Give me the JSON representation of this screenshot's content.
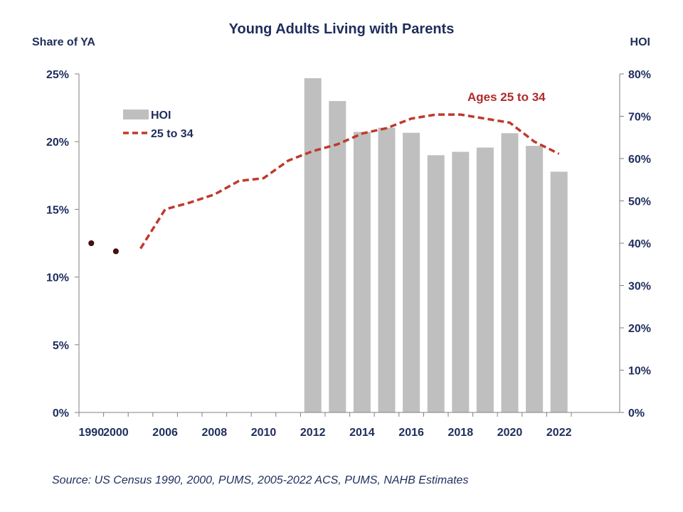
{
  "chart_data": {
    "type": "bar+line",
    "title": "Young Adults Living with Parents",
    "left_axis": {
      "label": "Share of YA",
      "ylim": [
        0,
        25
      ],
      "ticks": [
        "0%",
        "5%",
        "10%",
        "15%",
        "20%",
        "25%"
      ]
    },
    "right_axis": {
      "label": "HOI",
      "ylim": [
        0,
        80
      ],
      "ticks": [
        "0%",
        "10%",
        "20%",
        "30%",
        "40%",
        "50%",
        "60%",
        "70%",
        "80%"
      ]
    },
    "x_tick_labels": [
      "1990",
      "2000",
      "2006",
      "2008",
      "2010",
      "2012",
      "2014",
      "2016",
      "2018",
      "2020",
      "2022"
    ],
    "x_tick_years": [
      1990,
      2000,
      2006,
      2008,
      2010,
      2012,
      2014,
      2016,
      2018,
      2020,
      2022
    ],
    "x_positions": [
      1990,
      2000,
      2005,
      2006,
      2007,
      2008,
      2009,
      2010,
      2011,
      2012,
      2013,
      2014,
      2015,
      2016,
      2017,
      2018,
      2019,
      2020,
      2021,
      2022
    ],
    "legend": [
      {
        "name": "HOI",
        "kind": "bar",
        "color": "#bfbfbf"
      },
      {
        "name": "25 to 34",
        "kind": "dashed-line",
        "color": "#c0392b"
      }
    ],
    "series": [
      {
        "name": "HOI",
        "kind": "bar",
        "axis": "right",
        "color": "#bfbfbf",
        "points": [
          {
            "x": 2012,
            "y": 79
          },
          {
            "x": 2013,
            "y": 73.6
          },
          {
            "x": 2014,
            "y": 66.3
          },
          {
            "x": 2015,
            "y": 67.3
          },
          {
            "x": 2016,
            "y": 66.1
          },
          {
            "x": 2017,
            "y": 60.8
          },
          {
            "x": 2018,
            "y": 61.6
          },
          {
            "x": 2019,
            "y": 62.6
          },
          {
            "x": 2020,
            "y": 66
          },
          {
            "x": 2021,
            "y": 63
          },
          {
            "x": 2022,
            "y": 56.9
          }
        ]
      },
      {
        "name": "25 to 34",
        "kind": "dashed-line",
        "axis": "left",
        "color": "#c0392b",
        "points": [
          {
            "x": 2005,
            "y": 12.1
          },
          {
            "x": 2006,
            "y": 15
          },
          {
            "x": 2007,
            "y": 15.5
          },
          {
            "x": 2008,
            "y": 16.1
          },
          {
            "x": 2009,
            "y": 17.1
          },
          {
            "x": 2010,
            "y": 17.3
          },
          {
            "x": 2011,
            "y": 18.6
          },
          {
            "x": 2012,
            "y": 19.3
          },
          {
            "x": 2013,
            "y": 19.8
          },
          {
            "x": 2014,
            "y": 20.6
          },
          {
            "x": 2015,
            "y": 21
          },
          {
            "x": 2016,
            "y": 21.7
          },
          {
            "x": 2017,
            "y": 22
          },
          {
            "x": 2018,
            "y": 22
          },
          {
            "x": 2019,
            "y": 21.7
          },
          {
            "x": 2020,
            "y": 21.4
          },
          {
            "x": 2021,
            "y": 20
          },
          {
            "x": 2022,
            "y": 19.1
          }
        ],
        "markers": [
          {
            "x": 1990,
            "y": 12.5
          },
          {
            "x": 2000,
            "y": 11.9
          }
        ]
      }
    ],
    "annotations": [
      {
        "text": "Ages 25 to 34",
        "color": "#b02a2a"
      }
    ],
    "source": "Source: US Census 1990, 2000, PUMS, 2005-2022 ACS, PUMS, NAHB Estimates"
  }
}
